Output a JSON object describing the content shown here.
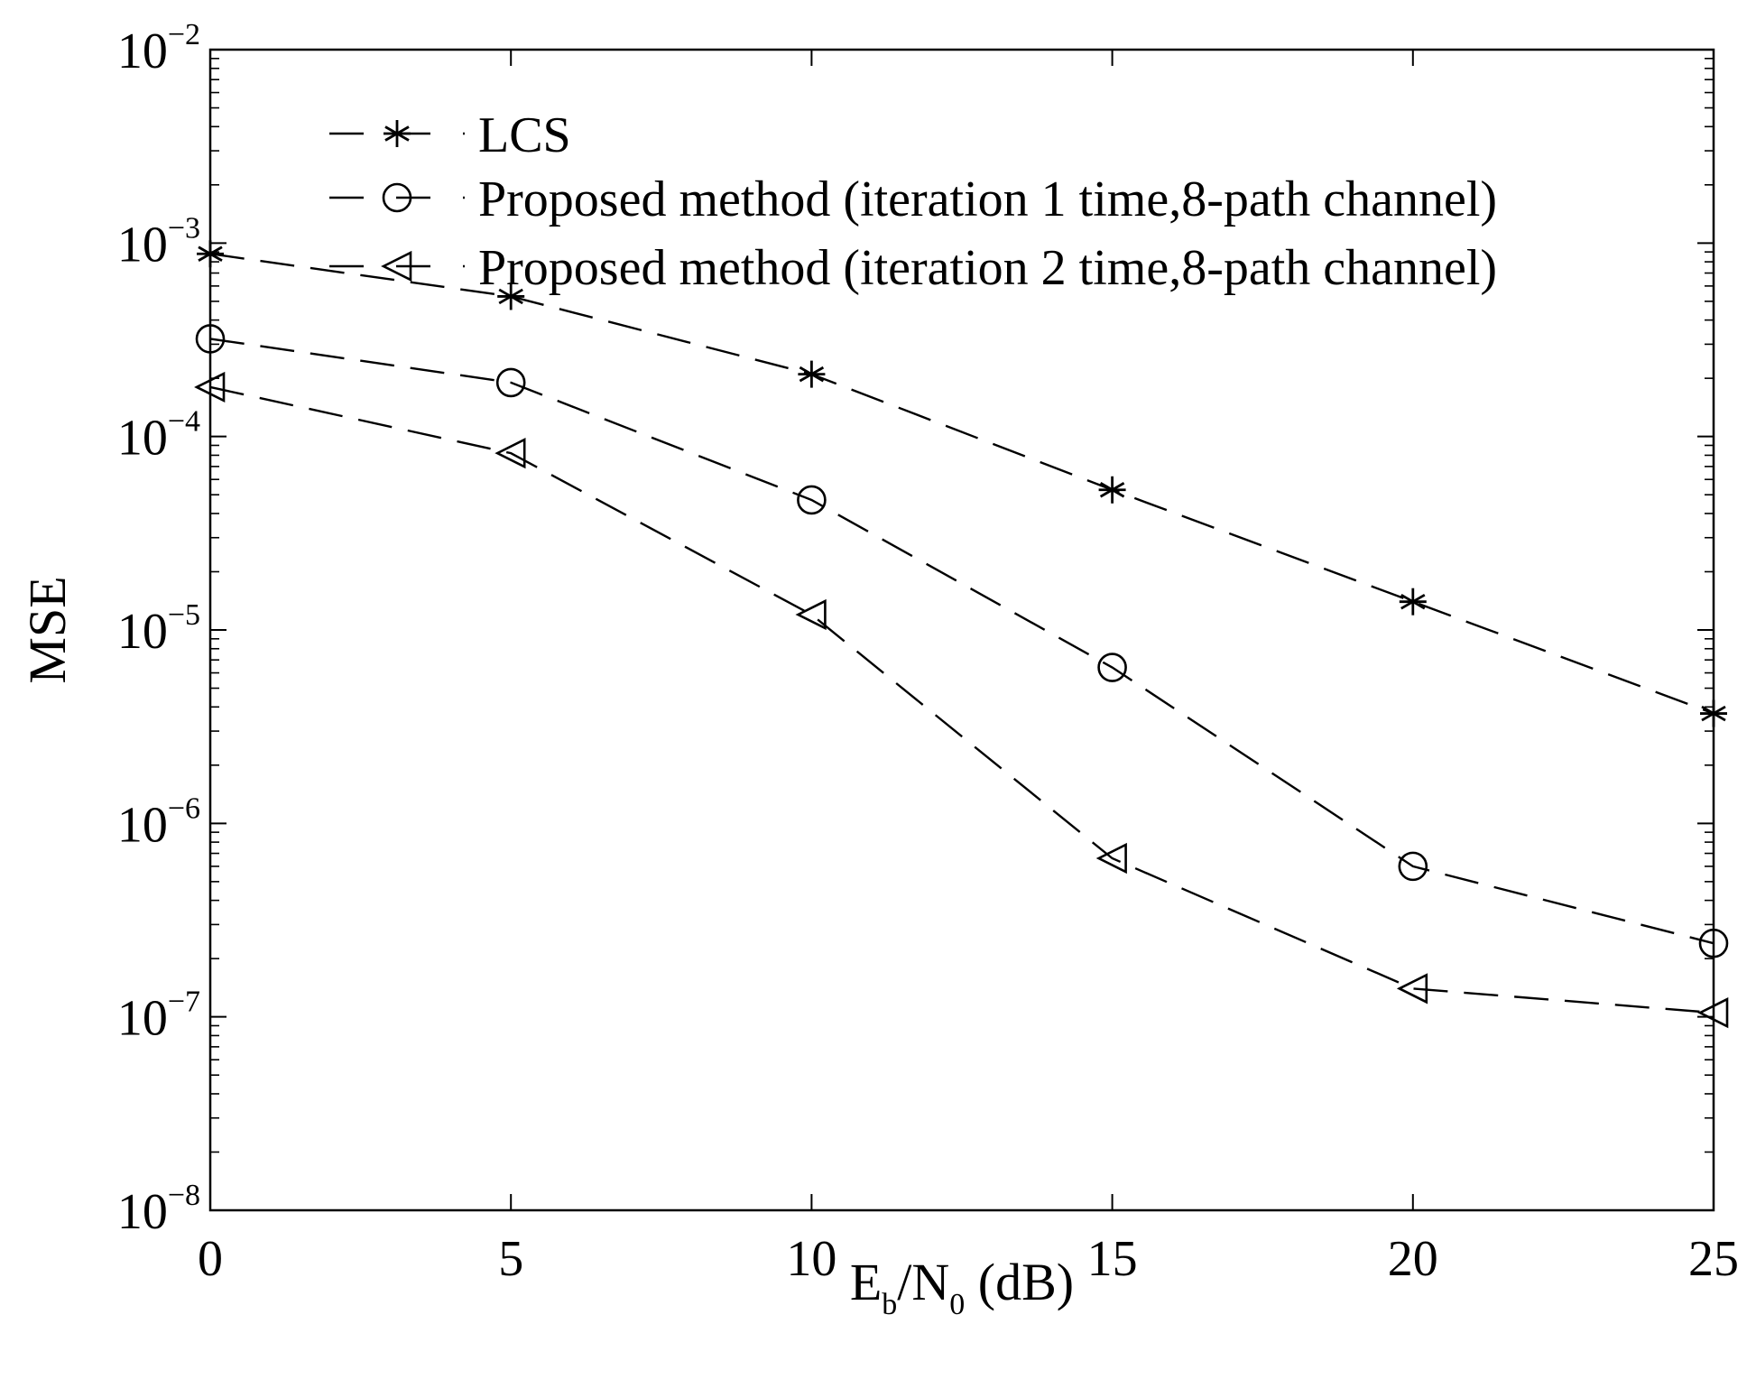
{
  "chart_data": {
    "type": "line",
    "title": "",
    "xlabel": {
      "main": "E",
      "sub1": "b",
      "mid": "/N",
      "sub2": "0",
      "tail": " (dB)"
    },
    "ylabel": "MSE",
    "x": [
      0,
      5,
      10,
      15,
      20,
      25
    ],
    "xlim": [
      0,
      25
    ],
    "ylim": [
      1e-08,
      0.01
    ],
    "yscale": "log",
    "grid": false,
    "legend_position": "top-left",
    "xtick_labels": [
      "0",
      "5",
      "10",
      "15",
      "20",
      "25"
    ],
    "ytick_labels": [
      {
        "base": "10",
        "exp": "−8",
        "value": 1e-08
      },
      {
        "base": "10",
        "exp": "−7",
        "value": 1e-07
      },
      {
        "base": "10",
        "exp": "−6",
        "value": 1e-06
      },
      {
        "base": "10",
        "exp": "−5",
        "value": 1e-05
      },
      {
        "base": "10",
        "exp": "−4",
        "value": 0.0001
      },
      {
        "base": "10",
        "exp": "−3",
        "value": 0.001
      },
      {
        "base": "10",
        "exp": "−2",
        "value": 0.01
      }
    ],
    "series": [
      {
        "name": "LCS",
        "marker": "star",
        "line_style": "dashed",
        "color": "#000000",
        "values": [
          0.00088,
          0.00053,
          0.00021,
          5.3e-05,
          1.4e-05,
          3.7e-06
        ]
      },
      {
        "name": "Proposed method (iteration 1 time,8-path channel)",
        "marker": "circle",
        "line_style": "dashed",
        "color": "#000000",
        "values": [
          0.00032,
          0.00019,
          4.7e-05,
          6.4e-06,
          6e-07,
          2.4e-07
        ]
      },
      {
        "name": "Proposed method (iteration 2 time,8-path channel)",
        "marker": "triangle-left",
        "line_style": "dashed",
        "color": "#000000",
        "values": [
          0.00018,
          8.2e-05,
          1.2e-05,
          6.6e-07,
          1.4e-07,
          1.05e-07
        ]
      }
    ]
  }
}
